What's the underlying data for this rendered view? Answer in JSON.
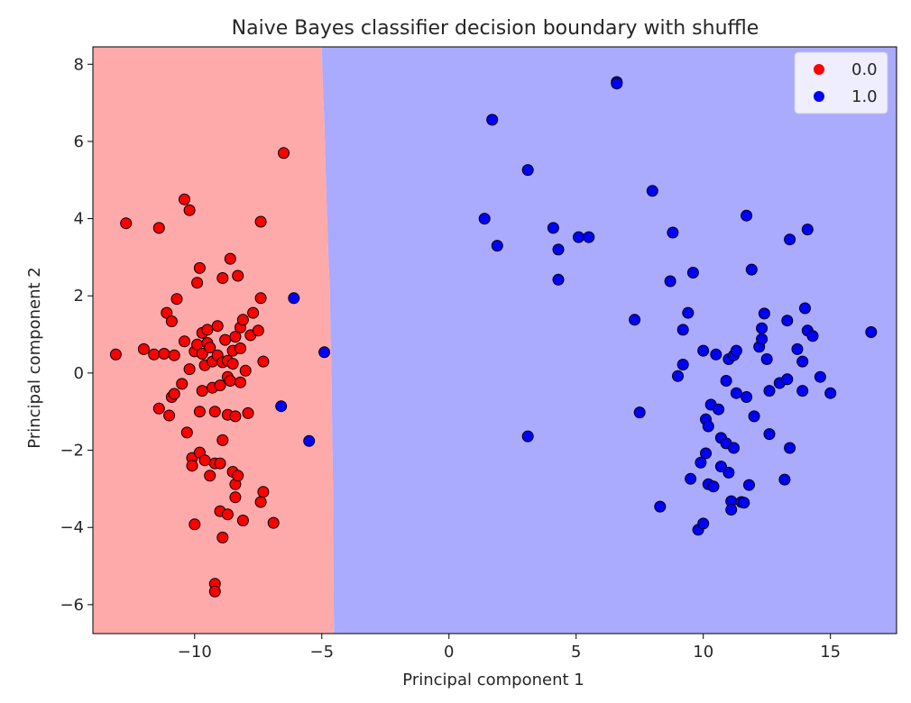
{
  "chart_data": {
    "type": "scatter",
    "title": "Naive Bayes classifier decision boundary with shuffle",
    "xlabel": "Principal component 1",
    "ylabel": "Principal component 2",
    "xlim": [
      -14,
      17.6
    ],
    "ylim": [
      -6.75,
      8.45
    ],
    "xticks": [
      -10,
      -5,
      0,
      5,
      10,
      15
    ],
    "xtick_labels": [
      "−10",
      "−5",
      "0",
      "5",
      "10",
      "15"
    ],
    "yticks": [
      -6,
      -4,
      -2,
      0,
      2,
      4,
      6,
      8
    ],
    "ytick_labels": [
      "−6",
      "−4",
      "−2",
      "0",
      "2",
      "4",
      "6",
      "8"
    ],
    "grid": false,
    "legend_position": "top-right",
    "decision_regions": {
      "class_0_color": "#ffaaaa",
      "class_1_color": "#aaaaff",
      "boundary": [
        [
          -5.0,
          8.45
        ],
        [
          -4.96,
          7.5
        ],
        [
          -4.9,
          6.5
        ],
        [
          -4.86,
          5.5
        ],
        [
          -4.82,
          4.6
        ],
        [
          -4.78,
          3.8
        ],
        [
          -4.74,
          3.0
        ],
        [
          -4.68,
          2.1
        ],
        [
          -4.66,
          1.0
        ],
        [
          -4.62,
          0.0
        ],
        [
          -4.6,
          -1.0
        ],
        [
          -4.58,
          -2.0
        ],
        [
          -4.56,
          -3.0
        ],
        [
          -4.55,
          -4.0
        ],
        [
          -4.54,
          -5.0
        ],
        [
          -4.53,
          -6.0
        ],
        [
          -4.52,
          -6.75
        ]
      ]
    },
    "series": [
      {
        "name": "0.0",
        "color": "#ff0000",
        "points": [
          [
            -13.1,
            0.48
          ],
          [
            -12.7,
            3.88
          ],
          [
            -12.0,
            0.62
          ],
          [
            -11.6,
            0.48
          ],
          [
            -11.4,
            3.76
          ],
          [
            -11.4,
            -0.92
          ],
          [
            -11.2,
            0.5
          ],
          [
            -11.1,
            1.56
          ],
          [
            -11.0,
            -1.1
          ],
          [
            -10.9,
            1.34
          ],
          [
            -10.9,
            -0.62
          ],
          [
            -10.8,
            -0.54
          ],
          [
            -10.8,
            0.46
          ],
          [
            -10.7,
            1.92
          ],
          [
            -10.5,
            -0.28
          ],
          [
            -10.4,
            0.82
          ],
          [
            -10.4,
            4.5
          ],
          [
            -10.3,
            -1.54
          ],
          [
            -10.2,
            4.22
          ],
          [
            -10.2,
            0.1
          ],
          [
            -10.1,
            -2.2
          ],
          [
            -10.1,
            -2.4
          ],
          [
            -10.0,
            -3.92
          ],
          [
            -10.0,
            0.56
          ],
          [
            -9.9,
            2.34
          ],
          [
            -9.9,
            0.74
          ],
          [
            -9.8,
            2.72
          ],
          [
            -9.8,
            -1.0
          ],
          [
            -9.8,
            -2.06
          ],
          [
            -9.7,
            1.04
          ],
          [
            -9.7,
            0.5
          ],
          [
            -9.7,
            -0.46
          ],
          [
            -9.6,
            0.2
          ],
          [
            -9.6,
            -2.26
          ],
          [
            -9.5,
            0.78
          ],
          [
            -9.5,
            1.12
          ],
          [
            -9.4,
            -2.66
          ],
          [
            -9.4,
            0.66
          ],
          [
            -9.3,
            0.3
          ],
          [
            -9.3,
            -0.38
          ],
          [
            -9.2,
            -1.0
          ],
          [
            -9.2,
            -2.34
          ],
          [
            -9.2,
            -5.46
          ],
          [
            -9.2,
            -5.66
          ],
          [
            -9.1,
            1.22
          ],
          [
            -9.1,
            0.46
          ],
          [
            -9.0,
            -0.32
          ],
          [
            -9.0,
            -2.34
          ],
          [
            -9.0,
            -3.58
          ],
          [
            -8.9,
            -4.26
          ],
          [
            -8.9,
            -1.74
          ],
          [
            -8.9,
            0.28
          ],
          [
            -8.9,
            2.46
          ],
          [
            -8.8,
            0.86
          ],
          [
            -8.7,
            -0.1
          ],
          [
            -8.7,
            -1.08
          ],
          [
            -8.7,
            0.32
          ],
          [
            -8.7,
            -3.66
          ],
          [
            -8.6,
            2.96
          ],
          [
            -8.6,
            -0.2
          ],
          [
            -8.5,
            0.58
          ],
          [
            -8.5,
            0.24
          ],
          [
            -8.5,
            -2.56
          ],
          [
            -8.4,
            -3.22
          ],
          [
            -8.4,
            -2.88
          ],
          [
            -8.4,
            -1.12
          ],
          [
            -8.4,
            0.94
          ],
          [
            -8.3,
            2.52
          ],
          [
            -8.3,
            -2.66
          ],
          [
            -8.2,
            1.18
          ],
          [
            -8.2,
            0.64
          ],
          [
            -8.2,
            -0.24
          ],
          [
            -8.1,
            1.38
          ],
          [
            -8.1,
            -3.82
          ],
          [
            -8.0,
            0.06
          ],
          [
            -7.9,
            -1.04
          ],
          [
            -7.8,
            0.98
          ],
          [
            -7.7,
            1.56
          ],
          [
            -7.5,
            1.1
          ],
          [
            -7.4,
            -3.34
          ],
          [
            -7.4,
            3.92
          ],
          [
            -7.4,
            1.94
          ],
          [
            -7.3,
            -3.08
          ],
          [
            -7.3,
            0.3
          ],
          [
            -6.9,
            -3.88
          ],
          [
            -6.5,
            5.7
          ]
        ]
      },
      {
        "name": "1.0",
        "color": "#0000ff",
        "points": [
          [
            -6.6,
            -0.86
          ],
          [
            -6.1,
            1.94
          ],
          [
            -5.5,
            -1.76
          ],
          [
            -4.9,
            0.54
          ],
          [
            1.4,
            4.0
          ],
          [
            1.7,
            6.56
          ],
          [
            1.9,
            3.3
          ],
          [
            3.1,
            5.26
          ],
          [
            3.1,
            -1.64
          ],
          [
            4.1,
            3.76
          ],
          [
            4.3,
            3.2
          ],
          [
            4.3,
            2.42
          ],
          [
            5.1,
            3.52
          ],
          [
            5.5,
            3.52
          ],
          [
            6.6,
            7.54
          ],
          [
            6.6,
            7.5
          ],
          [
            7.3,
            1.38
          ],
          [
            7.5,
            -1.02
          ],
          [
            8.0,
            4.72
          ],
          [
            8.3,
            -3.46
          ],
          [
            8.7,
            2.38
          ],
          [
            8.8,
            3.64
          ],
          [
            9.0,
            -0.08
          ],
          [
            9.2,
            0.22
          ],
          [
            9.2,
            1.12
          ],
          [
            9.4,
            1.56
          ],
          [
            9.5,
            -2.74
          ],
          [
            9.6,
            2.6
          ],
          [
            9.8,
            -4.06
          ],
          [
            9.9,
            -2.32
          ],
          [
            10.0,
            -3.9
          ],
          [
            10.0,
            0.58
          ],
          [
            10.1,
            -2.08
          ],
          [
            10.1,
            -1.2
          ],
          [
            10.2,
            -2.88
          ],
          [
            10.2,
            -1.38
          ],
          [
            10.3,
            -0.82
          ],
          [
            10.4,
            -2.94
          ],
          [
            10.5,
            0.48
          ],
          [
            10.6,
            -0.94
          ],
          [
            10.7,
            -1.68
          ],
          [
            10.7,
            -2.42
          ],
          [
            10.9,
            -0.2
          ],
          [
            10.9,
            -1.82
          ],
          [
            11.0,
            0.36
          ],
          [
            11.0,
            -2.58
          ],
          [
            11.1,
            -3.32
          ],
          [
            11.1,
            -3.54
          ],
          [
            11.2,
            0.46
          ],
          [
            11.2,
            -1.94
          ],
          [
            11.3,
            0.58
          ],
          [
            11.3,
            -0.52
          ],
          [
            11.5,
            -3.34
          ],
          [
            11.6,
            -3.36
          ],
          [
            11.7,
            4.08
          ],
          [
            11.7,
            -0.62
          ],
          [
            11.8,
            -2.9
          ],
          [
            11.9,
            2.68
          ],
          [
            12.0,
            -1.12
          ],
          [
            12.2,
            0.68
          ],
          [
            12.3,
            1.16
          ],
          [
            12.3,
            0.88
          ],
          [
            12.4,
            1.54
          ],
          [
            12.5,
            0.36
          ],
          [
            12.6,
            -0.46
          ],
          [
            12.6,
            -1.58
          ],
          [
            13.0,
            -0.26
          ],
          [
            13.2,
            -2.76
          ],
          [
            13.3,
            -0.16
          ],
          [
            13.3,
            1.36
          ],
          [
            13.4,
            -1.94
          ],
          [
            13.4,
            3.46
          ],
          [
            13.7,
            0.62
          ],
          [
            13.9,
            0.3
          ],
          [
            13.9,
            -0.46
          ],
          [
            14.0,
            1.68
          ],
          [
            14.1,
            1.1
          ],
          [
            14.1,
            3.72
          ],
          [
            14.3,
            0.96
          ],
          [
            14.6,
            -0.1
          ],
          [
            15.0,
            -0.52
          ],
          [
            16.6,
            1.06
          ]
        ]
      }
    ]
  }
}
